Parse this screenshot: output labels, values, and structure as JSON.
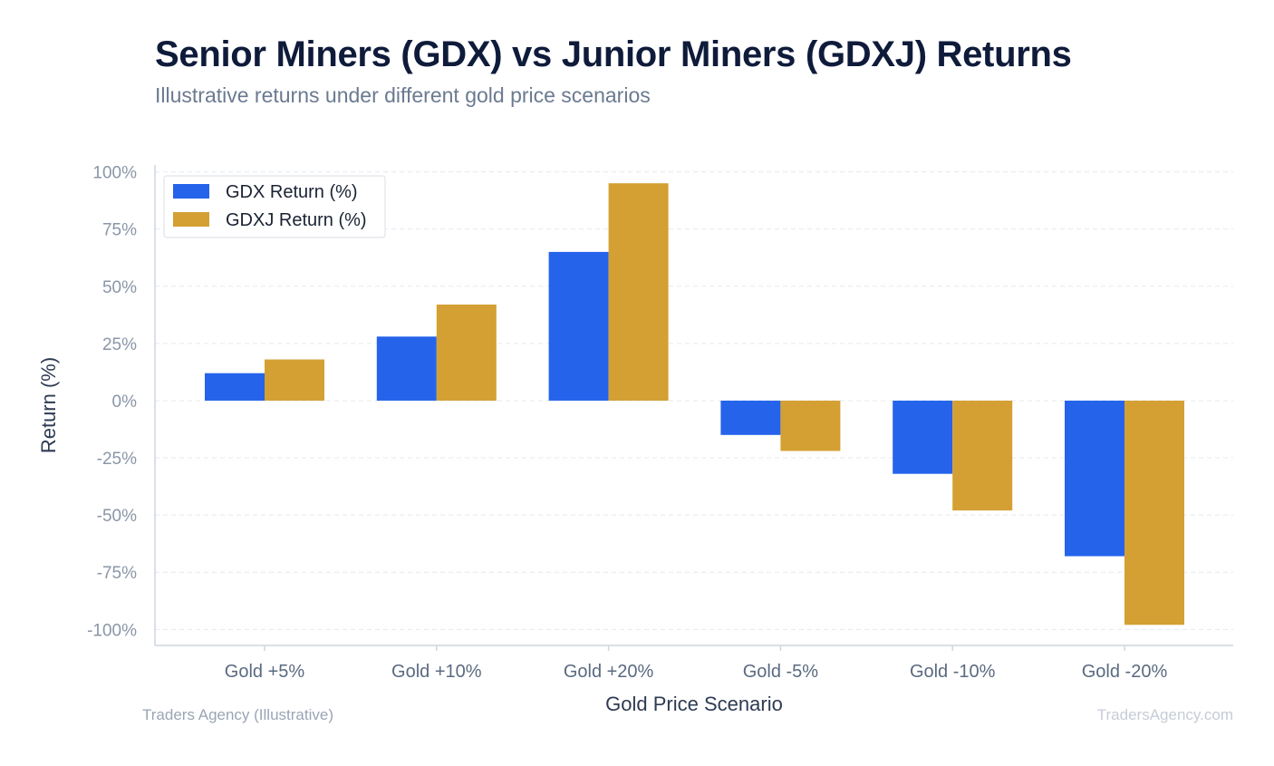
{
  "title": "Senior Miners (GDX) vs Junior Miners (GDXJ) Returns",
  "subtitle": "Illustrative returns under different gold price scenarios",
  "footer": {
    "source": "Traders Agency (Illustrative)",
    "watermark": "TradersAgency.com"
  },
  "colors": {
    "gdx": "#2563eb",
    "gdxj": "#d4a033",
    "grid": "#e5e9ef",
    "axis": "#cfd5de",
    "tick_text": "#8a96a8",
    "cat_text": "#5a6a80",
    "label_text": "#2d3b52"
  },
  "chart_data": {
    "type": "bar",
    "title": "Senior Miners (GDX) vs Junior Miners (GDXJ) Returns",
    "subtitle": "Illustrative returns under different gold price scenarios",
    "xlabel": "Gold Price Scenario",
    "ylabel": "Return (%)",
    "categories": [
      "Gold +5%",
      "Gold +10%",
      "Gold +20%",
      "Gold -5%",
      "Gold -10%",
      "Gold -20%"
    ],
    "series": [
      {
        "name": "GDX Return (%)",
        "values": [
          12,
          28,
          65,
          -15,
          -32,
          -68
        ]
      },
      {
        "name": "GDXJ Return (%)",
        "values": [
          18,
          42,
          95,
          -22,
          -48,
          -98
        ]
      }
    ],
    "ylim": [
      -107,
      103
    ],
    "yticks": [
      100,
      75,
      50,
      25,
      0,
      -25,
      -50,
      -75,
      -100
    ],
    "ytick_labels": [
      "100%",
      "75%",
      "50%",
      "25%",
      "0%",
      "-25%",
      "-50%",
      "-75%",
      "-100%"
    ],
    "grid": true,
    "legend_position": "top-left"
  }
}
